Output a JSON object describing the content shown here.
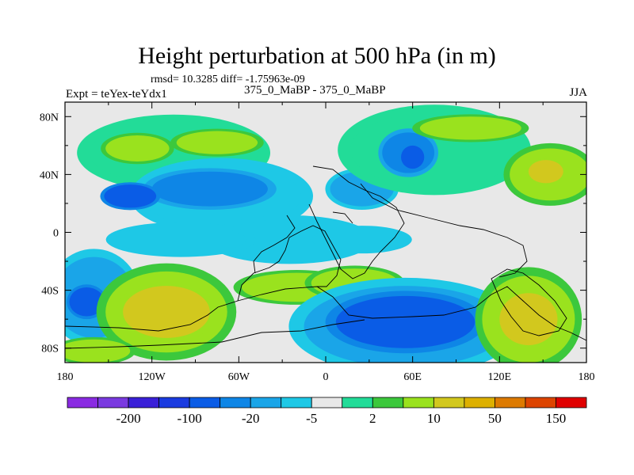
{
  "title": "Height perturbation at 500 hPa (in m)",
  "stats": "rmsd= 10.3285 diff= -1.75963e-09",
  "left_label": "Expt = teYex-teYdx1",
  "center_label": "375_0_MaBP - 375_0_MaBP",
  "right_label": "JJA",
  "chart_data": {
    "type": "heatmap",
    "title": "Height perturbation at 500 hPa (in m)",
    "xlim": [
      -180,
      180
    ],
    "ylim": [
      -90,
      90
    ],
    "x_ticks": [
      {
        "value": -180,
        "label": "180"
      },
      {
        "value": -120,
        "label": "120W"
      },
      {
        "value": -60,
        "label": "60W"
      },
      {
        "value": 0,
        "label": "0"
      },
      {
        "value": 60,
        "label": "60E"
      },
      {
        "value": 120,
        "label": "120E"
      },
      {
        "value": 180,
        "label": "180"
      }
    ],
    "y_ticks": [
      {
        "value": 80,
        "label": "80N"
      },
      {
        "value": 40,
        "label": "40N"
      },
      {
        "value": 0,
        "label": "0"
      },
      {
        "value": -40,
        "label": "40S"
      },
      {
        "value": -80,
        "label": "80S"
      }
    ],
    "colorbar": {
      "colors": [
        "#8a2be2",
        "#7a3ae0",
        "#3a20d8",
        "#1a3be0",
        "#0a5ce6",
        "#0e86e6",
        "#1aa5e8",
        "#1ec8e6",
        "#e8e8e8",
        "#22dc98",
        "#3cc83c",
        "#9ae21e",
        "#d2c81e",
        "#ddb000",
        "#dd7a00",
        "#dd4400",
        "#e00000"
      ],
      "labels": [
        {
          "after_index": 1,
          "label": "-200"
        },
        {
          "after_index": 3,
          "label": "-100"
        },
        {
          "after_index": 5,
          "label": "-20"
        },
        {
          "after_index": 7,
          "label": "-5"
        },
        {
          "after_index": 9,
          "label": "2"
        },
        {
          "after_index": 11,
          "label": "10"
        },
        {
          "after_index": 13,
          "label": "50"
        },
        {
          "after_index": 15,
          "label": "150"
        }
      ]
    },
    "field_blobs": [
      {
        "lon": -105,
        "lat": 55,
        "rx": 58,
        "ry": 22,
        "v": 3
      },
      {
        "lon": -130,
        "lat": 58,
        "rx": 22,
        "ry": 9,
        "v": 11
      },
      {
        "lon": -75,
        "lat": 62,
        "rx": 28,
        "ry": 8,
        "v": 12
      },
      {
        "lon": -72,
        "lat": 25,
        "rx": 55,
        "ry": 22,
        "v": -3
      },
      {
        "lon": -80,
        "lat": 30,
        "rx": 40,
        "ry": 12,
        "v": -15
      },
      {
        "lon": -135,
        "lat": 25,
        "rx": 18,
        "ry": 8,
        "v": -30
      },
      {
        "lon": 25,
        "lat": 30,
        "rx": 22,
        "ry": 12,
        "v": -8
      },
      {
        "lon": 75,
        "lat": 57,
        "rx": 58,
        "ry": 26,
        "v": 3
      },
      {
        "lon": 57,
        "lat": 55,
        "rx": 18,
        "ry": 14,
        "v": -15
      },
      {
        "lon": 60,
        "lat": 52,
        "rx": 8,
        "ry": 8,
        "v": -30
      },
      {
        "lon": 100,
        "lat": 72,
        "rx": 35,
        "ry": 8,
        "v": 12
      },
      {
        "lon": 155,
        "lat": 40,
        "rx": 28,
        "ry": 18,
        "v": 11
      },
      {
        "lon": 152,
        "lat": 42,
        "rx": 12,
        "ry": 8,
        "v": 30
      },
      {
        "lon": -25,
        "lat": -5,
        "rx": 50,
        "ry": 14,
        "v": -3
      },
      {
        "lon": 25,
        "lat": -5,
        "rx": 30,
        "ry": 8,
        "v": -3
      },
      {
        "lon": -100,
        "lat": -5,
        "rx": 45,
        "ry": 10,
        "v": -3
      },
      {
        "lon": -160,
        "lat": -45,
        "rx": 28,
        "ry": 28,
        "v": -8
      },
      {
        "lon": -165,
        "lat": -48,
        "rx": 12,
        "ry": 10,
        "v": -30
      },
      {
        "lon": -110,
        "lat": -55,
        "rx": 42,
        "ry": 28,
        "v": 11
      },
      {
        "lon": -110,
        "lat": -55,
        "rx": 30,
        "ry": 18,
        "v": 30
      },
      {
        "lon": -20,
        "lat": -38,
        "rx": 38,
        "ry": 10,
        "v": 11
      },
      {
        "lon": 20,
        "lat": -35,
        "rx": 30,
        "ry": 10,
        "v": 12
      },
      {
        "lon": 55,
        "lat": -65,
        "rx": 70,
        "ry": 28,
        "v": -8
      },
      {
        "lon": 55,
        "lat": -62,
        "rx": 48,
        "ry": 18,
        "v": -30
      },
      {
        "lon": 140,
        "lat": -60,
        "rx": 32,
        "ry": 30,
        "v": 11
      },
      {
        "lon": 140,
        "lat": -60,
        "rx": 20,
        "ry": 18,
        "v": 30
      },
      {
        "lon": -160,
        "lat": -82,
        "rx": 25,
        "ry": 8,
        "v": 12
      }
    ]
  }
}
